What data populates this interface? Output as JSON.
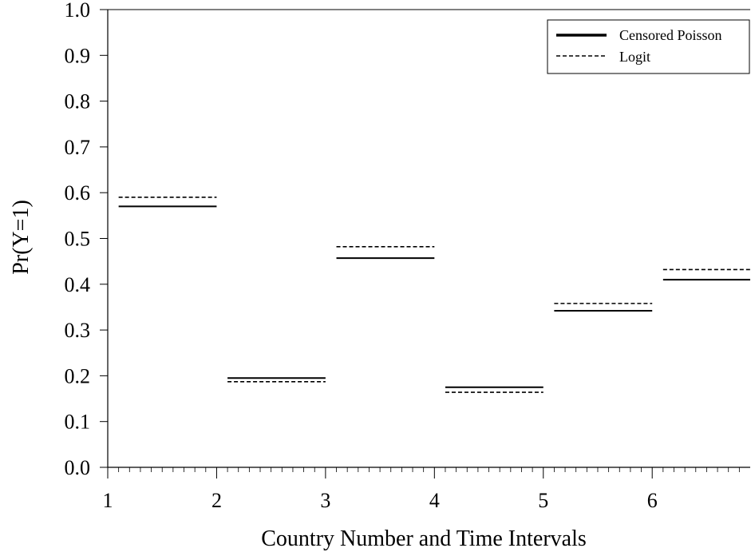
{
  "chart_data": {
    "type": "line",
    "xlabel": "Country Number and Time Intervals",
    "ylabel": "Pr(Y=1)",
    "xlim": [
      1,
      6.9
    ],
    "ylim": [
      0,
      1
    ],
    "x_ticks": [
      "1",
      "2",
      "3",
      "4",
      "5",
      "6"
    ],
    "y_ticks": [
      "0.0",
      "0.1",
      "0.2",
      "0.3",
      "0.4",
      "0.5",
      "0.6",
      "0.7",
      "0.8",
      "0.9",
      "1.0"
    ],
    "legend_position": "top-right",
    "grid": false,
    "series": [
      {
        "name": "Censored Poisson",
        "style": "solid",
        "segments": [
          {
            "x": [
              1.1,
              2.0
            ],
            "y": 0.57
          },
          {
            "x": [
              2.1,
              3.0
            ],
            "y": 0.195
          },
          {
            "x": [
              3.1,
              4.0
            ],
            "y": 0.457
          },
          {
            "x": [
              4.1,
              5.0
            ],
            "y": 0.175
          },
          {
            "x": [
              5.1,
              6.0
            ],
            "y": 0.342
          },
          {
            "x": [
              6.1,
              6.9
            ],
            "y": 0.41
          }
        ]
      },
      {
        "name": "Logit",
        "style": "dashed",
        "segments": [
          {
            "x": [
              1.1,
              2.0
            ],
            "y": 0.59
          },
          {
            "x": [
              2.1,
              3.0
            ],
            "y": 0.187
          },
          {
            "x": [
              3.1,
              4.0
            ],
            "y": 0.482
          },
          {
            "x": [
              4.1,
              5.0
            ],
            "y": 0.164
          },
          {
            "x": [
              5.1,
              6.0
            ],
            "y": 0.358
          },
          {
            "x": [
              6.1,
              6.9
            ],
            "y": 0.432
          }
        ]
      }
    ]
  }
}
